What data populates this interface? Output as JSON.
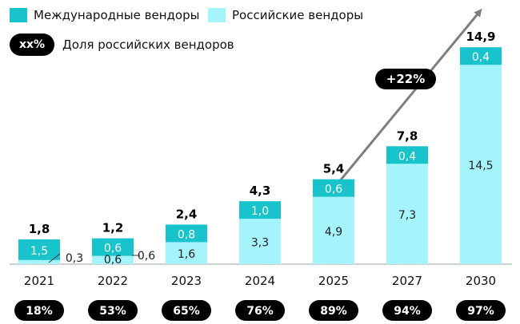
{
  "legend": {
    "international": "Международные вендоры",
    "russian": "Российские вендоры",
    "share_pill": "xx%",
    "share_label": "Доля российских вендоров"
  },
  "colors": {
    "international": "#19c3cc",
    "russian": "#a5f4fc",
    "arrow": "#7f7f7f",
    "pill": "#000000"
  },
  "growth_label": "+22%",
  "chart_data": {
    "type": "bar",
    "stacked": true,
    "categories": [
      "2021",
      "2022",
      "2023",
      "2024",
      "2025",
      "2027",
      "2030"
    ],
    "series": [
      {
        "name": "Российские вендоры",
        "values": [
          0.3,
          0.6,
          1.6,
          3.3,
          4.9,
          7.3,
          14.5
        ],
        "labels": [
          "0,3",
          "0,6",
          "1,6",
          "3,3",
          "4,9",
          "7,3",
          "14,5"
        ]
      },
      {
        "name": "Международные вендоры",
        "values": [
          1.5,
          0.6,
          0.8,
          1.0,
          0.6,
          0.4,
          0.4
        ],
        "labels": [
          "1,5",
          "0,6",
          "0,8",
          "1,0",
          "0,6",
          "0,4",
          "0,4"
        ]
      }
    ],
    "totals": [
      "1,8",
      "1,2",
      "2,4",
      "4,3",
      "5,4",
      "7,8",
      "14,9"
    ],
    "russian_share": [
      "18%",
      "53%",
      "65%",
      "76%",
      "89%",
      "94%",
      "97%"
    ],
    "ylim": [
      0,
      15.5
    ],
    "grid": false,
    "legend_position": "top-left"
  }
}
